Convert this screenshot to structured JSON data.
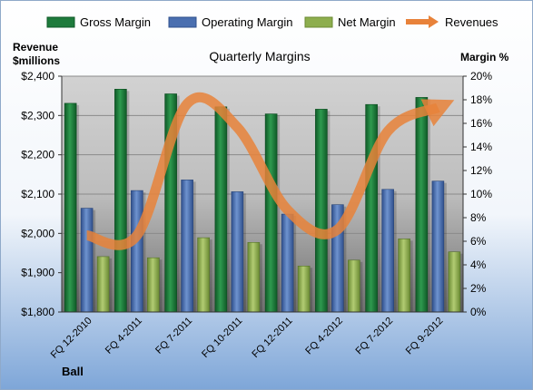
{
  "chart_data": {
    "type": "bar",
    "title": "Quarterly Margins",
    "company": "Ball",
    "left_axis_label": [
      "Revenue",
      "$millions"
    ],
    "right_axis_label": "Margin %",
    "categories": [
      "FQ 12-2010",
      "FQ 4-2011",
      "FQ 7-2011",
      "FQ 10-2011",
      "FQ 12-2011",
      "FQ 4-2012",
      "FQ 7-2012",
      "FQ 9-2012"
    ],
    "left_axis": {
      "min": 1800,
      "max": 2400,
      "step": 100,
      "tick_labels": [
        "$1,800",
        "$1,900",
        "$2,000",
        "$2,100",
        "$2,200",
        "$2,300",
        "$2,400"
      ]
    },
    "right_axis": {
      "min": 0,
      "max": 20,
      "step": 2,
      "tick_labels": [
        "0%",
        "2%",
        "4%",
        "6%",
        "8%",
        "10%",
        "12%",
        "14%",
        "16%",
        "18%",
        "20%"
      ]
    },
    "series": [
      {
        "name": "Gross Margin",
        "axis": "right",
        "kind": "bar",
        "color": "#1E7B3C",
        "values": [
          17.7,
          18.9,
          18.5,
          17.4,
          16.8,
          17.2,
          17.6,
          18.2
        ]
      },
      {
        "name": "Operating Margin",
        "axis": "right",
        "kind": "bar",
        "color": "#4A6FB0",
        "values": [
          8.8,
          10.3,
          11.2,
          10.2,
          8.3,
          9.1,
          10.4,
          11.1
        ]
      },
      {
        "name": "Net Margin",
        "axis": "right",
        "kind": "bar",
        "color": "#8DAE4E",
        "values": [
          4.7,
          4.6,
          6.3,
          5.9,
          3.9,
          4.4,
          6.2,
          5.1
        ]
      },
      {
        "name": "Revenues",
        "axis": "left",
        "kind": "line",
        "color": "#E8823A",
        "values": [
          1995,
          1995,
          2330,
          2270,
          2060,
          2010,
          2260,
          2320
        ]
      }
    ],
    "grid": true,
    "legend_position": "top"
  }
}
